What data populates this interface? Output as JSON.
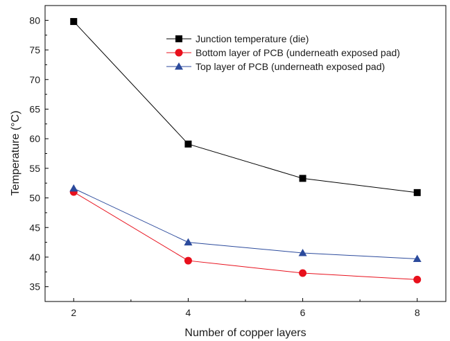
{
  "chart_data": {
    "type": "line",
    "title": "",
    "xlabel": "Number of copper layers",
    "ylabel": "Temperature (°C)",
    "x": [
      2,
      4,
      6,
      8
    ],
    "xticks": [
      2,
      4,
      6,
      8
    ],
    "yticks": [
      35,
      40,
      45,
      50,
      55,
      60,
      65,
      70,
      75,
      80
    ],
    "xlim": [
      1.5,
      8.5
    ],
    "ylim": [
      32.5,
      82.5
    ],
    "grid": false,
    "legend_position": "top-right",
    "series": [
      {
        "name": "Junction temperature (die)",
        "values": [
          79.8,
          59.1,
          53.3,
          50.9
        ],
        "color": "#000000",
        "marker": "square"
      },
      {
        "name": "Bottom layer of PCB  (underneath exposed pad)",
        "values": [
          51.0,
          39.4,
          37.3,
          36.2
        ],
        "color": "#e8101c",
        "marker": "circle"
      },
      {
        "name": "Top layer of PCB (underneath exposed pad)",
        "values": [
          51.6,
          42.5,
          40.7,
          39.7
        ],
        "color": "#2b4a9c",
        "marker": "triangle"
      }
    ]
  }
}
